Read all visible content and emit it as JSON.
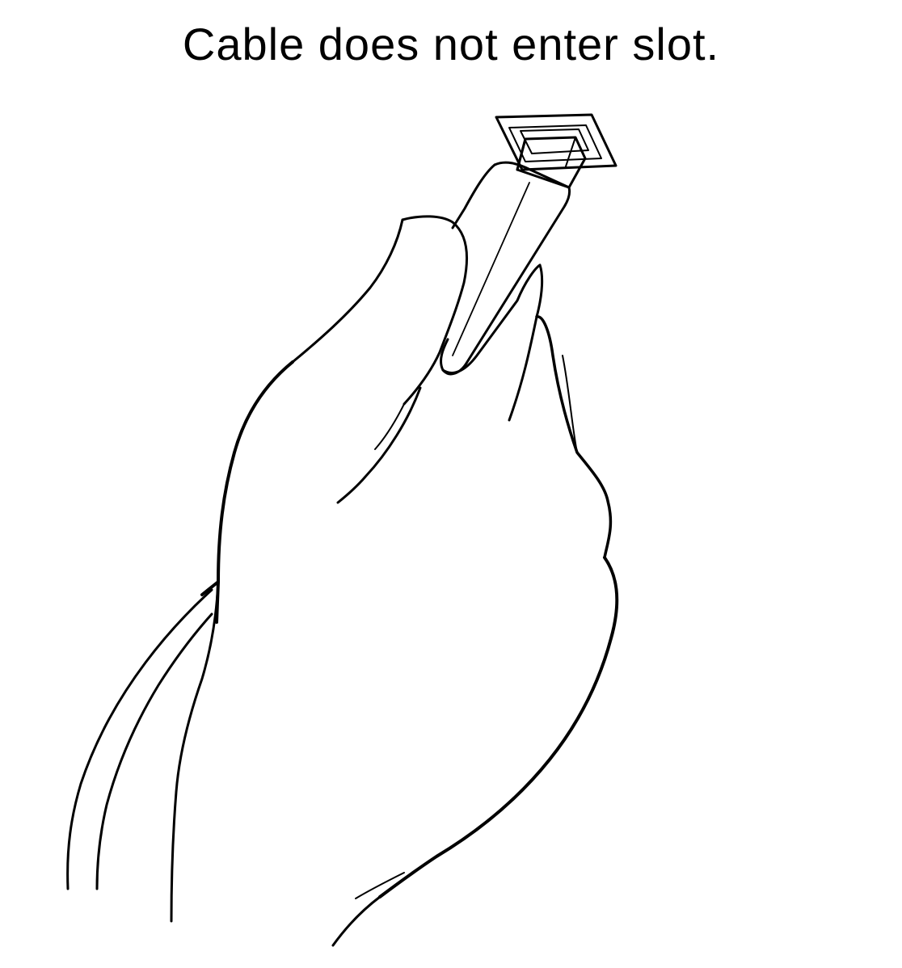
{
  "caption": "Cable does not enter slot.",
  "illustration": {
    "subject": "hand-holding-cable-icon",
    "line_color": "#000000",
    "background_color": "#ffffff"
  }
}
